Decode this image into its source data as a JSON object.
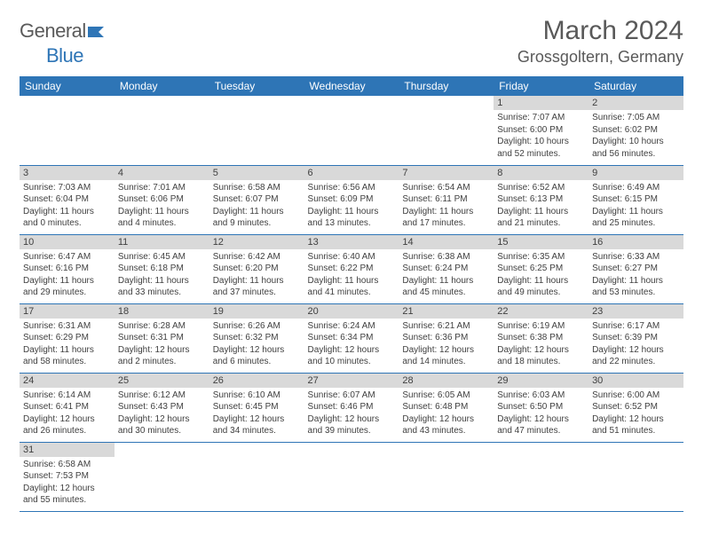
{
  "logo": {
    "text1": "General",
    "text2": "Blue"
  },
  "title": "March 2024",
  "location": "Grossgoltern, Germany",
  "colors": {
    "header_bg": "#2e75b6",
    "header_text": "#ffffff",
    "daynum_bg": "#d9d9d9",
    "daynum_text": "#404040",
    "body_text": "#404040",
    "border": "#2e75b6",
    "title_text": "#595959"
  },
  "weekdays": [
    "Sunday",
    "Monday",
    "Tuesday",
    "Wednesday",
    "Thursday",
    "Friday",
    "Saturday"
  ],
  "weeks": [
    [
      null,
      null,
      null,
      null,
      null,
      {
        "n": "1",
        "sr": "Sunrise: 7:07 AM",
        "ss": "Sunset: 6:00 PM",
        "dl1": "Daylight: 10 hours",
        "dl2": "and 52 minutes."
      },
      {
        "n": "2",
        "sr": "Sunrise: 7:05 AM",
        "ss": "Sunset: 6:02 PM",
        "dl1": "Daylight: 10 hours",
        "dl2": "and 56 minutes."
      }
    ],
    [
      {
        "n": "3",
        "sr": "Sunrise: 7:03 AM",
        "ss": "Sunset: 6:04 PM",
        "dl1": "Daylight: 11 hours",
        "dl2": "and 0 minutes."
      },
      {
        "n": "4",
        "sr": "Sunrise: 7:01 AM",
        "ss": "Sunset: 6:06 PM",
        "dl1": "Daylight: 11 hours",
        "dl2": "and 4 minutes."
      },
      {
        "n": "5",
        "sr": "Sunrise: 6:58 AM",
        "ss": "Sunset: 6:07 PM",
        "dl1": "Daylight: 11 hours",
        "dl2": "and 9 minutes."
      },
      {
        "n": "6",
        "sr": "Sunrise: 6:56 AM",
        "ss": "Sunset: 6:09 PM",
        "dl1": "Daylight: 11 hours",
        "dl2": "and 13 minutes."
      },
      {
        "n": "7",
        "sr": "Sunrise: 6:54 AM",
        "ss": "Sunset: 6:11 PM",
        "dl1": "Daylight: 11 hours",
        "dl2": "and 17 minutes."
      },
      {
        "n": "8",
        "sr": "Sunrise: 6:52 AM",
        "ss": "Sunset: 6:13 PM",
        "dl1": "Daylight: 11 hours",
        "dl2": "and 21 minutes."
      },
      {
        "n": "9",
        "sr": "Sunrise: 6:49 AM",
        "ss": "Sunset: 6:15 PM",
        "dl1": "Daylight: 11 hours",
        "dl2": "and 25 minutes."
      }
    ],
    [
      {
        "n": "10",
        "sr": "Sunrise: 6:47 AM",
        "ss": "Sunset: 6:16 PM",
        "dl1": "Daylight: 11 hours",
        "dl2": "and 29 minutes."
      },
      {
        "n": "11",
        "sr": "Sunrise: 6:45 AM",
        "ss": "Sunset: 6:18 PM",
        "dl1": "Daylight: 11 hours",
        "dl2": "and 33 minutes."
      },
      {
        "n": "12",
        "sr": "Sunrise: 6:42 AM",
        "ss": "Sunset: 6:20 PM",
        "dl1": "Daylight: 11 hours",
        "dl2": "and 37 minutes."
      },
      {
        "n": "13",
        "sr": "Sunrise: 6:40 AM",
        "ss": "Sunset: 6:22 PM",
        "dl1": "Daylight: 11 hours",
        "dl2": "and 41 minutes."
      },
      {
        "n": "14",
        "sr": "Sunrise: 6:38 AM",
        "ss": "Sunset: 6:24 PM",
        "dl1": "Daylight: 11 hours",
        "dl2": "and 45 minutes."
      },
      {
        "n": "15",
        "sr": "Sunrise: 6:35 AM",
        "ss": "Sunset: 6:25 PM",
        "dl1": "Daylight: 11 hours",
        "dl2": "and 49 minutes."
      },
      {
        "n": "16",
        "sr": "Sunrise: 6:33 AM",
        "ss": "Sunset: 6:27 PM",
        "dl1": "Daylight: 11 hours",
        "dl2": "and 53 minutes."
      }
    ],
    [
      {
        "n": "17",
        "sr": "Sunrise: 6:31 AM",
        "ss": "Sunset: 6:29 PM",
        "dl1": "Daylight: 11 hours",
        "dl2": "and 58 minutes."
      },
      {
        "n": "18",
        "sr": "Sunrise: 6:28 AM",
        "ss": "Sunset: 6:31 PM",
        "dl1": "Daylight: 12 hours",
        "dl2": "and 2 minutes."
      },
      {
        "n": "19",
        "sr": "Sunrise: 6:26 AM",
        "ss": "Sunset: 6:32 PM",
        "dl1": "Daylight: 12 hours",
        "dl2": "and 6 minutes."
      },
      {
        "n": "20",
        "sr": "Sunrise: 6:24 AM",
        "ss": "Sunset: 6:34 PM",
        "dl1": "Daylight: 12 hours",
        "dl2": "and 10 minutes."
      },
      {
        "n": "21",
        "sr": "Sunrise: 6:21 AM",
        "ss": "Sunset: 6:36 PM",
        "dl1": "Daylight: 12 hours",
        "dl2": "and 14 minutes."
      },
      {
        "n": "22",
        "sr": "Sunrise: 6:19 AM",
        "ss": "Sunset: 6:38 PM",
        "dl1": "Daylight: 12 hours",
        "dl2": "and 18 minutes."
      },
      {
        "n": "23",
        "sr": "Sunrise: 6:17 AM",
        "ss": "Sunset: 6:39 PM",
        "dl1": "Daylight: 12 hours",
        "dl2": "and 22 minutes."
      }
    ],
    [
      {
        "n": "24",
        "sr": "Sunrise: 6:14 AM",
        "ss": "Sunset: 6:41 PM",
        "dl1": "Daylight: 12 hours",
        "dl2": "and 26 minutes."
      },
      {
        "n": "25",
        "sr": "Sunrise: 6:12 AM",
        "ss": "Sunset: 6:43 PM",
        "dl1": "Daylight: 12 hours",
        "dl2": "and 30 minutes."
      },
      {
        "n": "26",
        "sr": "Sunrise: 6:10 AM",
        "ss": "Sunset: 6:45 PM",
        "dl1": "Daylight: 12 hours",
        "dl2": "and 34 minutes."
      },
      {
        "n": "27",
        "sr": "Sunrise: 6:07 AM",
        "ss": "Sunset: 6:46 PM",
        "dl1": "Daylight: 12 hours",
        "dl2": "and 39 minutes."
      },
      {
        "n": "28",
        "sr": "Sunrise: 6:05 AM",
        "ss": "Sunset: 6:48 PM",
        "dl1": "Daylight: 12 hours",
        "dl2": "and 43 minutes."
      },
      {
        "n": "29",
        "sr": "Sunrise: 6:03 AM",
        "ss": "Sunset: 6:50 PM",
        "dl1": "Daylight: 12 hours",
        "dl2": "and 47 minutes."
      },
      {
        "n": "30",
        "sr": "Sunrise: 6:00 AM",
        "ss": "Sunset: 6:52 PM",
        "dl1": "Daylight: 12 hours",
        "dl2": "and 51 minutes."
      }
    ],
    [
      {
        "n": "31",
        "sr": "Sunrise: 6:58 AM",
        "ss": "Sunset: 7:53 PM",
        "dl1": "Daylight: 12 hours",
        "dl2": "and 55 minutes."
      },
      null,
      null,
      null,
      null,
      null,
      null
    ]
  ]
}
